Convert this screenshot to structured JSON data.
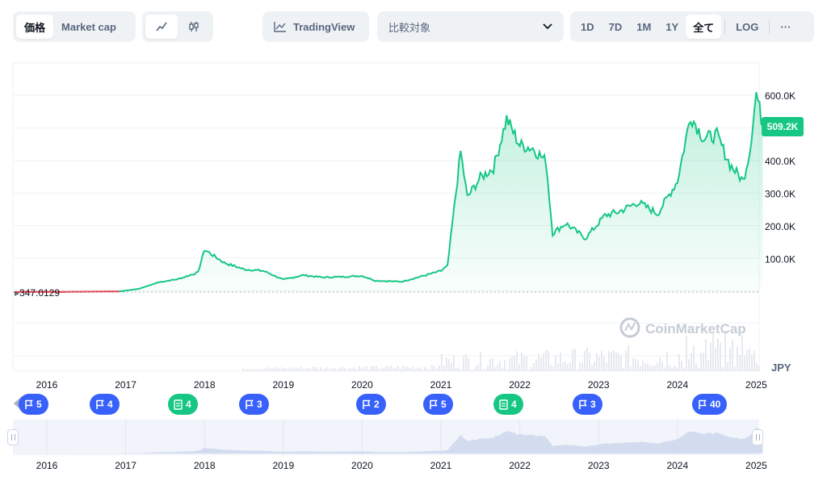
{
  "toolbar": {
    "type_tabs": [
      "価格",
      "Market cap"
    ],
    "type_active": 0,
    "tradingview_label": "TradingView",
    "compare_placeholder": "比較対象",
    "ranges": [
      "1D",
      "7D",
      "1M",
      "1Y",
      "全て"
    ],
    "range_active": "全て",
    "log_label": "LOG",
    "more_label": "···"
  },
  "chart_data": {
    "type": "area",
    "currency": "JPY",
    "y_ticks": [
      "100.0K",
      "200.0K",
      "300.0K",
      "400.0K",
      "500.0K",
      "600.0K"
    ],
    "ylim": [
      0,
      700000
    ],
    "current_price_label": "509.2K",
    "start_price_label": "347.0129",
    "watermark": "CoinMarketCap",
    "x_ticks": [
      "2016",
      "2017",
      "2018",
      "2019",
      "2020",
      "2021",
      "2022",
      "2023",
      "2024",
      "2025"
    ],
    "nav_x_ticks": [
      "2016",
      "2017",
      "2018",
      "2019",
      "2020",
      "2021",
      "2022",
      "2023",
      "2024",
      "2025"
    ],
    "x": [
      "2015-08",
      "2016-01",
      "2016-06",
      "2016-12",
      "2017-03",
      "2017-06",
      "2017-09",
      "2017-12",
      "2018-01",
      "2018-04",
      "2018-07",
      "2018-10",
      "2019-01",
      "2019-04",
      "2019-07",
      "2019-10",
      "2020-01",
      "2020-03",
      "2020-07",
      "2020-10",
      "2021-01",
      "2021-02",
      "2021-04",
      "2021-05",
      "2021-07",
      "2021-09",
      "2021-11",
      "2022-01",
      "2022-03",
      "2022-05",
      "2022-06",
      "2022-08",
      "2022-11",
      "2023-02",
      "2023-04",
      "2023-07",
      "2023-10",
      "2024-01",
      "2024-03",
      "2024-05",
      "2024-07",
      "2024-09",
      "2024-11",
      "2024-12",
      "2025-01",
      "2025-02"
    ],
    "y": [
      347,
      500,
      1000,
      2000,
      10000,
      30000,
      40000,
      60000,
      130000,
      90000,
      70000,
      65000,
      38000,
      52000,
      45000,
      47000,
      50000,
      35000,
      32000,
      48000,
      65000,
      80000,
      430000,
      290000,
      350000,
      380000,
      530000,
      450000,
      440000,
      400000,
      180000,
      210000,
      165000,
      235000,
      245000,
      275000,
      240000,
      340000,
      540000,
      470000,
      480000,
      390000,
      340000,
      430000,
      610000,
      509200
    ],
    "volume_note": "",
    "events": [
      {
        "label": "5",
        "kind": "flag",
        "color": "blue"
      },
      {
        "label": "4",
        "kind": "flag",
        "color": "blue"
      },
      {
        "label": "4",
        "kind": "doc",
        "color": "green"
      },
      {
        "label": "3",
        "kind": "flag",
        "color": "blue"
      },
      {
        "label": "2",
        "kind": "flag",
        "color": "blue"
      },
      {
        "label": "5",
        "kind": "flag",
        "color": "blue"
      },
      {
        "label": "4",
        "kind": "doc",
        "color": "green"
      },
      {
        "label": "3",
        "kind": "flag",
        "color": "blue"
      },
      {
        "label": "40",
        "kind": "flag",
        "color": "blue"
      }
    ],
    "colors": {
      "up": "#16c784",
      "down": "#ea3943",
      "accent": "#3861fb"
    }
  }
}
